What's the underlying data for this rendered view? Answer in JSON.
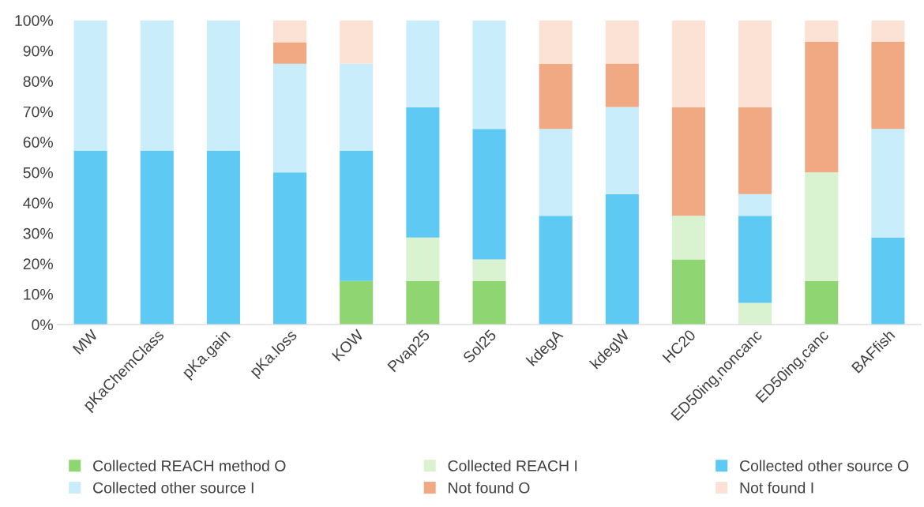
{
  "chart_data": {
    "type": "bar",
    "stacked": true,
    "legend": "bottom",
    "categories": [
      "MW",
      "pKaChemClass",
      "pKa.gain",
      "pKa.loss",
      "KOW",
      "Pvap25",
      "Sol25",
      "kdegA",
      "kdegW",
      "HC20",
      "ED50ing,noncanc",
      "ED50ing,canc",
      "BAFfish"
    ],
    "ylim": [
      0,
      100
    ],
    "yticks": [
      {
        "value": 0,
        "label": "0%"
      },
      {
        "value": 10,
        "label": "10%"
      },
      {
        "value": 20,
        "label": "20%"
      },
      {
        "value": 30,
        "label": "30%"
      },
      {
        "value": 40,
        "label": "40%"
      },
      {
        "value": 50,
        "label": "50%"
      },
      {
        "value": 60,
        "label": "60%"
      },
      {
        "value": 70,
        "label": "70%"
      },
      {
        "value": 80,
        "label": "80%"
      },
      {
        "value": 90,
        "label": "90%"
      },
      {
        "value": 100,
        "label": "100%"
      }
    ],
    "series": [
      {
        "name": "Collected REACH method O",
        "color": "#8fd672",
        "values": [
          0,
          0,
          0,
          0,
          14.3,
          14.3,
          14.3,
          0,
          0,
          21.4,
          0,
          14.3,
          0
        ]
      },
      {
        "name": "Collected REACH I",
        "color": "#d9f2d0",
        "values": [
          0,
          0,
          0,
          0,
          0,
          14.3,
          7.1,
          0,
          0,
          14.3,
          7.1,
          35.7,
          0
        ]
      },
      {
        "name": "Collected other source O",
        "color": "#5ec9f2",
        "values": [
          57.1,
          57.1,
          57.1,
          50,
          42.8,
          42.8,
          42.9,
          35.7,
          42.9,
          0,
          28.6,
          0,
          28.6
        ]
      },
      {
        "name": "Collected other source I",
        "color": "#caedfb",
        "values": [
          42.9,
          42.9,
          42.9,
          35.7,
          28.6,
          28.6,
          35.7,
          28.6,
          28.6,
          0,
          7.2,
          0,
          35.7
        ]
      },
      {
        "name": "Not found O",
        "color": "#f1a983",
        "values": [
          0,
          0,
          0,
          7.1,
          0,
          0,
          0,
          21.4,
          14.3,
          35.7,
          28.5,
          42.9,
          28.6
        ]
      },
      {
        "name": "Not found I",
        "color": "#fbe2d5",
        "values": [
          0,
          0,
          0,
          7.2,
          14.3,
          0,
          0,
          14.3,
          14.2,
          28.6,
          28.6,
          7.1,
          7.1
        ]
      }
    ]
  }
}
